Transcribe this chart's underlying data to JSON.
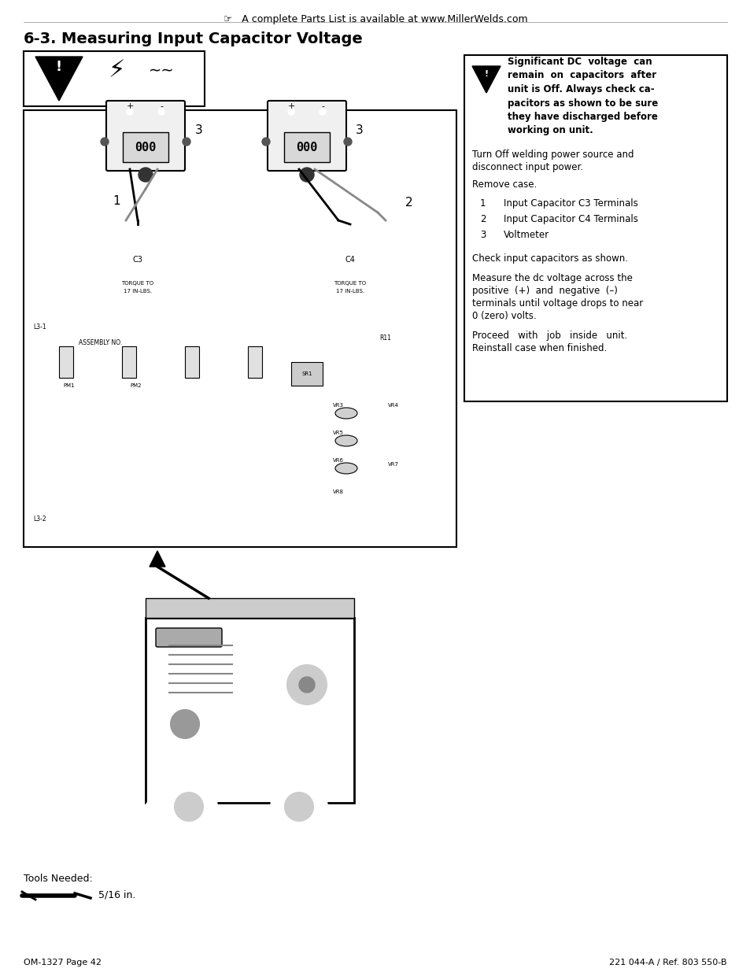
{
  "page_title_prefix": "6-3.",
  "page_title": "Measuring Input Capacitor Voltage",
  "header_note": "A complete Parts List is available at www.MillerWelds.com",
  "warning_bold": "Significant DC  voltage  can\nremain  on  capacitors  after\nunit is Off. Always check ca-\npacitors as shown to be sure\nthey have discharged before\nworking on unit.",
  "para1": "Turn Off welding power source and\ndisconnect input power.",
  "para2": "Remove case.",
  "items": [
    {
      "num": "1",
      "text": "Input Capacitor C3 Terminals"
    },
    {
      "num": "2",
      "text": "Input Capacitor C4 Terminals"
    },
    {
      "num": "3",
      "text": "Voltmeter"
    }
  ],
  "para3": "Check input capacitors as shown.",
  "para4": "Measure the dc voltage across the\npositive  (+)  and  negative  (–)\nterminals until voltage drops to near\n0 (zero) volts.",
  "para5": "Proceed   with   job   inside   unit.\nReinstall case when finished.",
  "footer_left": "OM-1327 Page 42",
  "footer_right": "221 044-A / Ref. 803 550-B",
  "tools_needed": "Tools Needed:",
  "tools_size": "5/16 in.",
  "bg_color": "#ffffff",
  "text_color": "#000000",
  "border_color": "#000000"
}
